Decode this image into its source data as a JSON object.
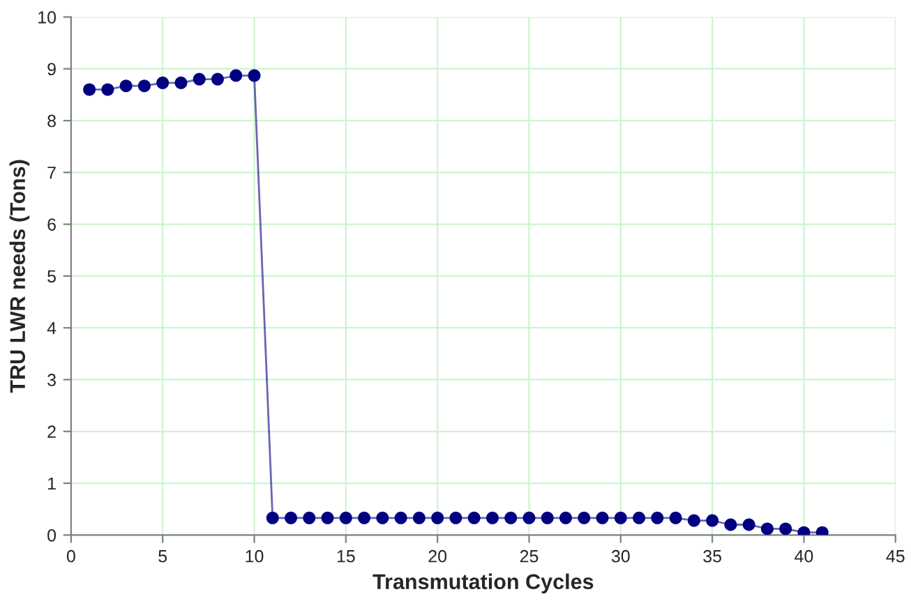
{
  "chart_data": {
    "type": "line",
    "xlabel": "Transmutation Cycles",
    "ylabel": "TRU LWR needs (Tons)",
    "x": [
      1,
      2,
      3,
      4,
      5,
      6,
      7,
      8,
      9,
      10,
      11,
      12,
      13,
      14,
      15,
      16,
      17,
      18,
      19,
      20,
      21,
      22,
      23,
      24,
      25,
      26,
      27,
      28,
      29,
      30,
      31,
      32,
      33,
      34,
      35,
      36,
      37,
      38,
      39,
      40,
      41
    ],
    "series": [
      {
        "color": "#000080",
        "values": [
          8.6,
          8.6,
          8.67,
          8.67,
          8.73,
          8.73,
          8.8,
          8.8,
          8.87,
          8.87,
          0.33,
          0.33,
          0.33,
          0.33,
          0.33,
          0.33,
          0.33,
          0.33,
          0.33,
          0.33,
          0.33,
          0.33,
          0.33,
          0.33,
          0.33,
          0.33,
          0.33,
          0.33,
          0.33,
          0.33,
          0.33,
          0.33,
          0.33,
          0.28,
          0.28,
          0.2,
          0.2,
          0.12,
          0.12,
          0.05,
          0.05
        ]
      }
    ],
    "xlim": [
      0,
      45
    ],
    "xticks": [
      0,
      5,
      10,
      15,
      20,
      25,
      30,
      35,
      40,
      45
    ],
    "ylim": [
      0,
      10
    ],
    "yticks": [
      0,
      1,
      2,
      3,
      4,
      5,
      6,
      7,
      8,
      9,
      10
    ],
    "grid": true,
    "marker": "circle",
    "line_style": "solid"
  }
}
